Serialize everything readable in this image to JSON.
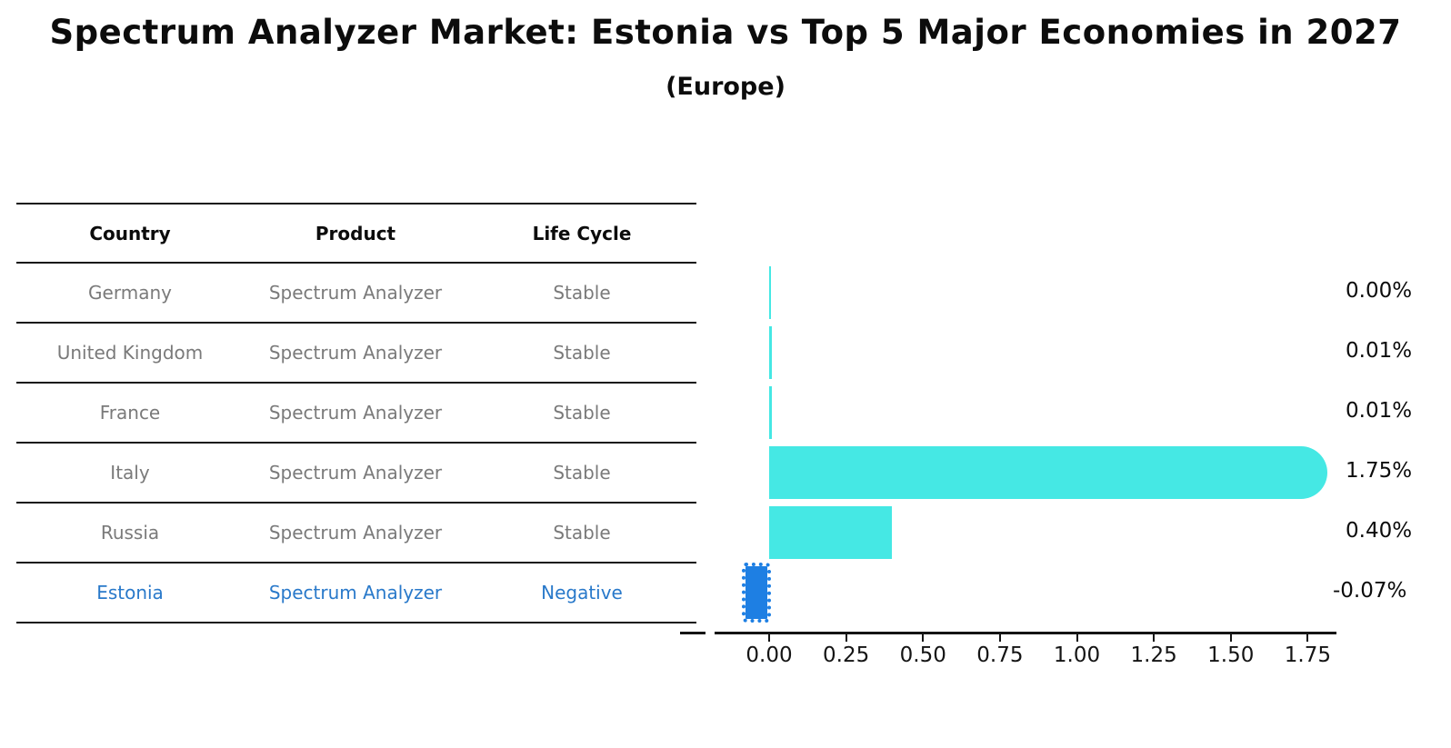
{
  "title": "Spectrum Analyzer Market: Estonia vs Top 5 Major Economies in 2027",
  "subtitle": "(Europe)",
  "table": {
    "headers": [
      "Country",
      "Product",
      "Life Cycle"
    ],
    "rows": [
      {
        "country": "Germany",
        "product": "Spectrum Analyzer",
        "life_cycle": "Stable",
        "highlight": false
      },
      {
        "country": "United Kingdom",
        "product": "Spectrum Analyzer",
        "life_cycle": "Stable",
        "highlight": false
      },
      {
        "country": "France",
        "product": "Spectrum Analyzer",
        "life_cycle": "Stable",
        "highlight": false
      },
      {
        "country": "Italy",
        "product": "Spectrum Analyzer",
        "life_cycle": "Stable",
        "highlight": false
      },
      {
        "country": "Russia",
        "product": "Spectrum Analyzer",
        "life_cycle": "Stable",
        "highlight": false
      },
      {
        "country": "Estonia",
        "product": "Spectrum Analyzer",
        "life_cycle": "Negative",
        "highlight": true
      }
    ]
  },
  "chart_data": {
    "type": "bar",
    "orientation": "horizontal",
    "title": "Spectrum Analyzer Market: Estonia vs Top 5 Major Economies in 2027 (Europe)",
    "categories": [
      "Germany",
      "United Kingdom",
      "France",
      "Italy",
      "Russia",
      "Estonia"
    ],
    "values": [
      0.0,
      0.01,
      0.01,
      1.75,
      0.4,
      -0.07
    ],
    "value_labels": [
      "0.00%",
      "0.01%",
      "0.01%",
      "1.75%",
      "0.40%",
      "-0.07%"
    ],
    "x_ticks": [
      "0.00",
      "0.25",
      "0.50",
      "0.75",
      "1.00",
      "1.25",
      "1.50",
      "1.75"
    ],
    "xlim": [
      -0.29,
      1.84
    ],
    "grid": false,
    "legend": false,
    "highlight_category": "Estonia",
    "bar_color": "#45E8E4",
    "highlight_bar_color": "#1E7FE3"
  },
  "colors": {
    "background": "#FFFFFF",
    "bar_cyan": "#45E8E4",
    "bar_blue": "#1E7FE3",
    "highlight_text": "#2979CA",
    "table_text": "#7A7A7A",
    "line": "#141414"
  }
}
